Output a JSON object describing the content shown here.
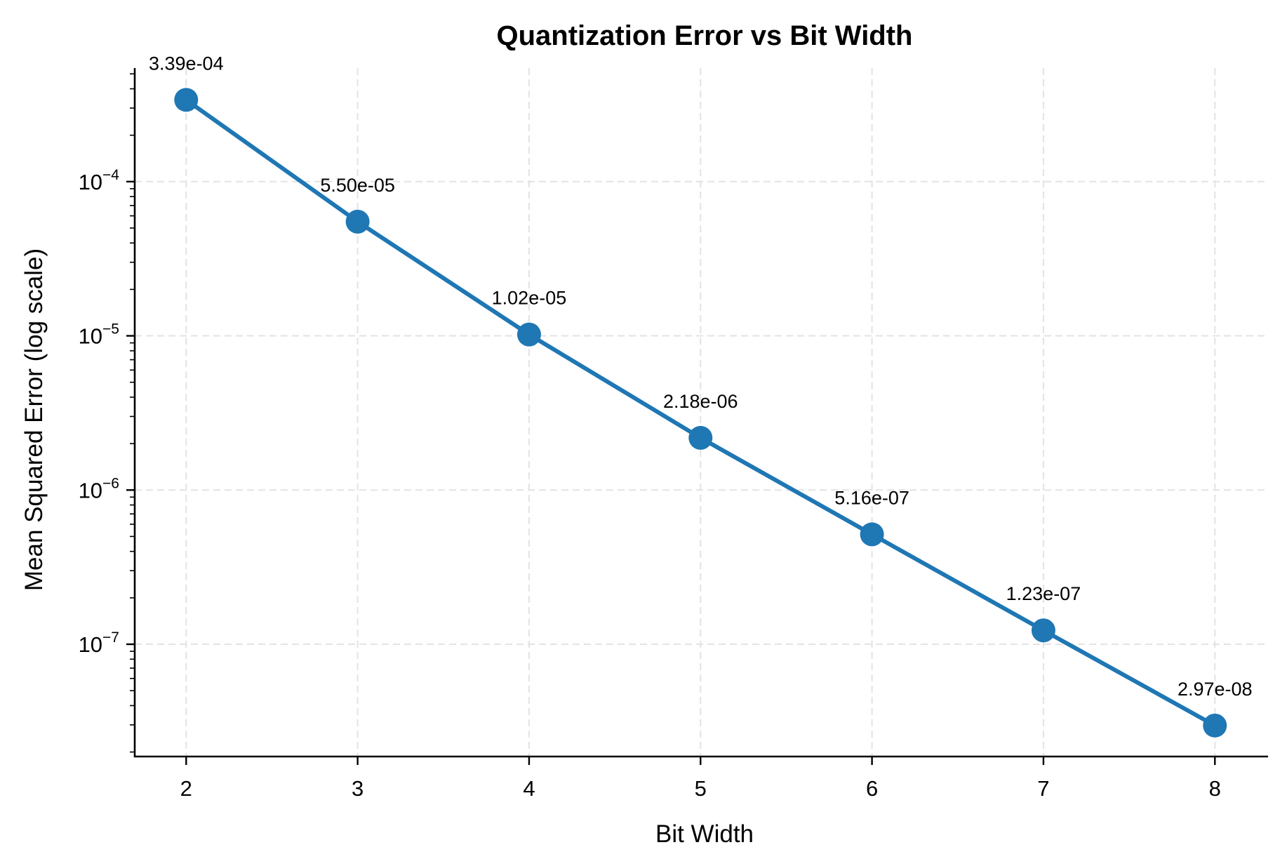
{
  "chart_data": {
    "type": "line",
    "title": "Quantization Error vs Bit Width",
    "xlabel": "Bit Width",
    "ylabel": "Mean Squared Error (log scale)",
    "yscale": "log",
    "x": [
      2,
      3,
      4,
      5,
      6,
      7,
      8
    ],
    "series": [
      {
        "name": "MSE",
        "color": "#1f77b4",
        "values": [
          0.000339,
          5.5e-05,
          1.02e-05,
          2.18e-06,
          5.16e-07,
          1.23e-07,
          2.97e-08
        ],
        "labels": [
          "3.39e-04",
          "5.50e-05",
          "1.02e-05",
          "2.18e-06",
          "5.16e-07",
          "1.23e-07",
          "2.97e-08"
        ]
      }
    ],
    "xticks": [
      "2",
      "3",
      "4",
      "5",
      "6",
      "7",
      "8"
    ],
    "yticks": [
      {
        "value": 0.0001,
        "base": "10",
        "exp": "−4"
      },
      {
        "value": 1e-05,
        "base": "10",
        "exp": "−5"
      },
      {
        "value": 1e-06,
        "base": "10",
        "exp": "−6"
      },
      {
        "value": 1e-07,
        "base": "10",
        "exp": "−7"
      }
    ],
    "xlim": [
      1.7,
      8.31
    ],
    "ylim": [
      1.87e-08,
      0.000545
    ],
    "grid": true,
    "legend": false
  }
}
